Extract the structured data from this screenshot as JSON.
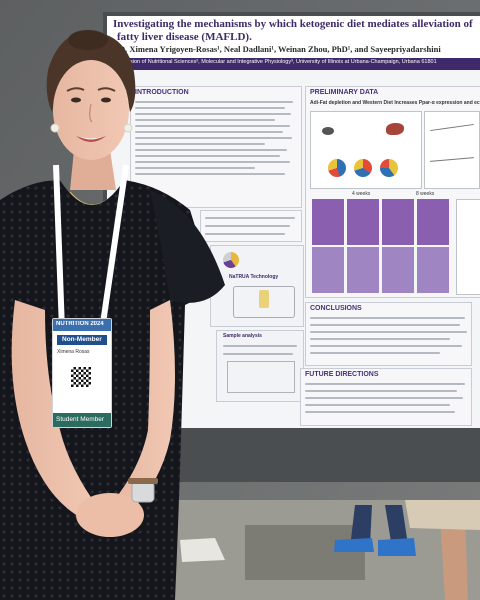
{
  "poster": {
    "title_line1": "Investigating the mechanisms by which ketogenic diet mediates alleviation of",
    "title_line2": "fatty liver disease (MAFLD).",
    "authors": "D. Ximena Yrigoyen-Rosas¹, Neal Dadlani¹, Weinan Zhou, PhD¹, and Sayeepriyadarshini",
    "affiliation": "¹Division of Nutritional Sciences², Molecular and Integrative Physiology³, University of Illinois at Urbana-Champaign, Urbana 61801",
    "sections": {
      "introduction": "INTRODUCTION",
      "preliminary": "PRELIMINARY DATA",
      "prelim_sub": "Adi-Fat depletion and Western Diet Increases Ppar-α expression and ectopic...",
      "conclusions": "CONCLUSIONS",
      "future": "FUTURE DIRECTIONS",
      "natrua": "NaTRUA Technology",
      "sample": "Sample analysis"
    },
    "weeks_label": "4 weeks",
    "weeks_label_b": "8 weeks"
  },
  "badge": {
    "ribbon": "NUTRITION 2024",
    "tag": "Non-Member",
    "name": "Ximena Rosas",
    "footer": "Student Member"
  },
  "colors": {
    "poster_purple": "#3e2a6a",
    "poster_bg": "#f4f5f7",
    "dress": "#14161c",
    "lanyard": "#ffffff",
    "floor": "#9a9a92"
  }
}
